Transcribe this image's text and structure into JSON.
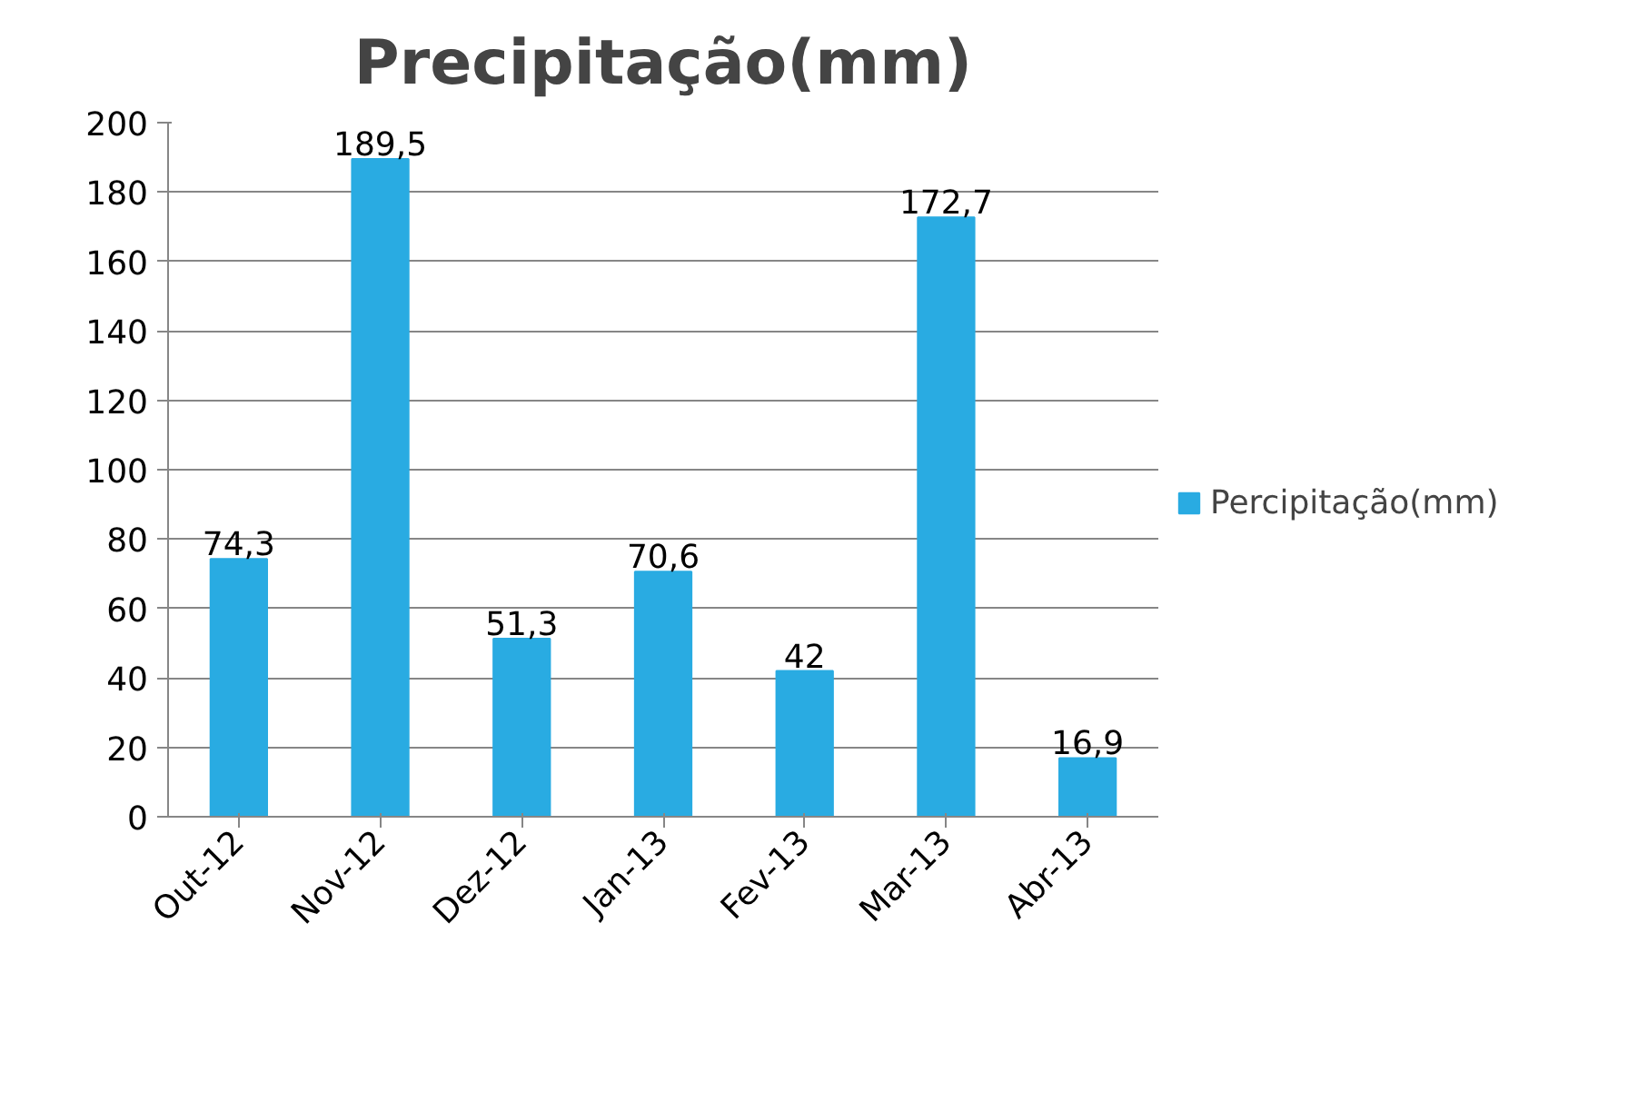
{
  "chart_data": {
    "type": "bar",
    "title": "Precipitação(mm)",
    "categories": [
      "Out-12",
      "Nov-12",
      "Dez-12",
      "Jan-13",
      "Fev-13",
      "Mar-13",
      "Abr-13"
    ],
    "series": [
      {
        "name": "Percipitação(mm)",
        "color": "#29abe2",
        "values": [
          74.3,
          189.5,
          51.3,
          70.6,
          42,
          172.7,
          16.9
        ],
        "value_labels": [
          "74,3",
          "189,5",
          "51,3",
          "70,6",
          "42",
          "172,7",
          "16,9"
        ]
      }
    ],
    "ylim": [
      0,
      200
    ],
    "yticks": [
      0,
      20,
      40,
      60,
      80,
      100,
      120,
      140,
      160,
      180,
      200
    ],
    "grid": "y",
    "legend": "right"
  }
}
